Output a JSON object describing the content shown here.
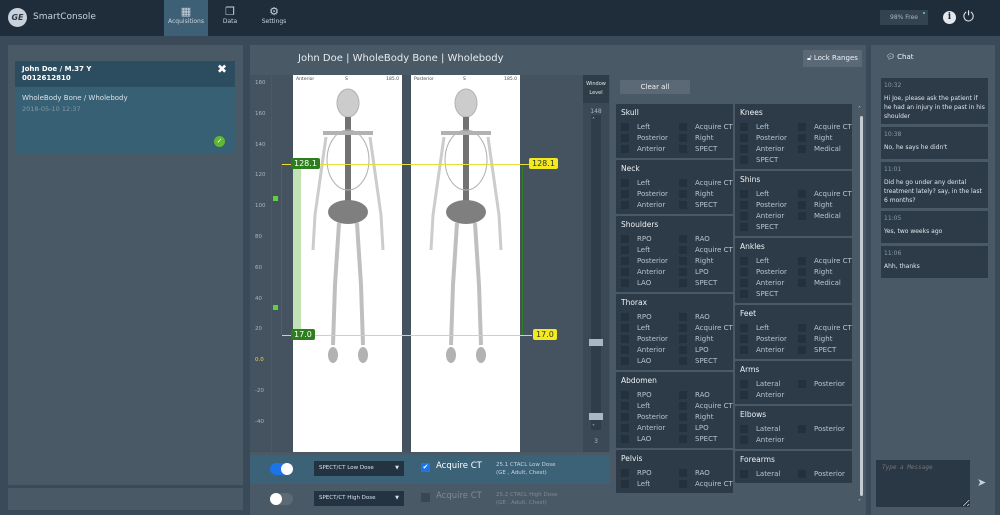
{
  "app": {
    "title": "SmartConsole",
    "logo": "GE"
  },
  "nav": [
    {
      "label": "Acquisitions",
      "icon": "layout-icon",
      "active": true
    },
    {
      "label": "Data",
      "icon": "copy-icon"
    },
    {
      "label": "Settings",
      "icon": "gear-icon"
    }
  ],
  "header": {
    "storage": "98% Free"
  },
  "patient": {
    "name": "John Doe / M.37 Y",
    "id": "0012612810",
    "exam": "WholeBody Bone / Wholebody",
    "date": "2018-05-10 12:37"
  },
  "viewer": {
    "title": "John Doe  |  WholeBody Bone | Wholebody",
    "lock_label": "Lock Ranges",
    "ruler": [
      "180",
      "160",
      "140",
      "120",
      "100",
      "80",
      "60",
      "40",
      "20",
      "0.0",
      "-20",
      "-40"
    ],
    "anterior": {
      "label": "Anterior",
      "center": "S",
      "value": "185.0"
    },
    "posterior": {
      "label": "Posterior",
      "center": "S",
      "value": "185.0"
    },
    "range_top": "128.1",
    "range_bottom": "17.0",
    "window_label": "Window",
    "level_label": "Level",
    "wl_max": "148",
    "wl_min": "3"
  },
  "checklist": {
    "clear_all": "Clear all",
    "left": [
      {
        "title": "Skull",
        "items": [
          "Left",
          "Acquire CT",
          "Posterior",
          "Right",
          "Anterior",
          "SPECT"
        ]
      },
      {
        "title": "Neck",
        "items": [
          "Left",
          "Acquire CT",
          "Posterior",
          "Right",
          "Anterior",
          "SPECT"
        ]
      },
      {
        "title": "Shoulders",
        "items": [
          "RPO",
          "RAO",
          "Left",
          "Acquire CT",
          "Posterior",
          "Right",
          "Anterior",
          "LPO",
          "LAO",
          "SPECT"
        ]
      },
      {
        "title": "Thorax",
        "items": [
          "RPO",
          "RAO",
          "Left",
          "Acquire CT",
          "Posterior",
          "Right",
          "Anterior",
          "LPO",
          "LAO",
          "SPECT"
        ]
      },
      {
        "title": "Abdomen",
        "items": [
          "RPO",
          "RAO",
          "Left",
          "Acquire CT",
          "Posterior",
          "Right",
          "Anterior",
          "LPO",
          "LAO",
          "SPECT"
        ]
      },
      {
        "title": "Pelvis",
        "items": [
          "RPO",
          "RAO",
          "Left",
          "Acquire CT"
        ]
      }
    ],
    "right": [
      {
        "title": "Knees",
        "items": [
          "Left",
          "Acquire CT",
          "Posterior",
          "Right",
          "Anterior",
          "Medical",
          "SPECT"
        ]
      },
      {
        "title": "Shins",
        "items": [
          "Left",
          "Acquire CT",
          "Posterior",
          "Right",
          "Anterior",
          "Medical",
          "SPECT"
        ]
      },
      {
        "title": "Ankles",
        "items": [
          "Left",
          "Acquire CT",
          "Posterior",
          "Right",
          "Anterior",
          "Medical",
          "SPECT"
        ]
      },
      {
        "title": "Feet",
        "items": [
          "Left",
          "Acquire CT",
          "Posterior",
          "Right",
          "Anterior",
          "SPECT"
        ]
      },
      {
        "title": "Arms",
        "items": [
          "Lateral",
          "Posterior",
          "Anterior"
        ]
      },
      {
        "title": "Elbows",
        "items": [
          "Lateral",
          "Posterior",
          "Anterior"
        ]
      },
      {
        "title": "Forearms",
        "items": [
          "Lateral",
          "Posterior"
        ]
      }
    ]
  },
  "protocols": [
    {
      "enabled": true,
      "select": "SPECT/CT Low Dose",
      "acquire_label": "Acquire CT",
      "acquire_checked": true,
      "line1": "25.1  CTACL Low Dose",
      "line2": "(GE , Adult, Chest)"
    },
    {
      "enabled": false,
      "select": "SPECT/CT High Dose",
      "acquire_label": "Acquire CT",
      "acquire_checked": false,
      "line1": "25.2  CTACL High Dose",
      "line2": "(GE , Adult, Chest)"
    }
  ],
  "chat": {
    "title": "Chat",
    "messages": [
      {
        "time": "10:32",
        "text": "Hi Joe, please ask the patient if he had an injury in the past in his shoulder"
      },
      {
        "time": "10:38",
        "text": "No, he says he didn't"
      },
      {
        "time": "11:01",
        "text": "Did he go under any dental treatment lately? say, in the last 6 months?"
      },
      {
        "time": "11:05",
        "text": "Yes, two weeks ago"
      },
      {
        "time": "11:06",
        "text": "Ahh, thanks"
      }
    ],
    "placeholder": "Type a Message"
  },
  "colors": {
    "accent": "#3e6076",
    "range_green": "#2e7d1f",
    "range_yellow": "#f2ea1d",
    "toggle_on": "#1e73e8"
  }
}
